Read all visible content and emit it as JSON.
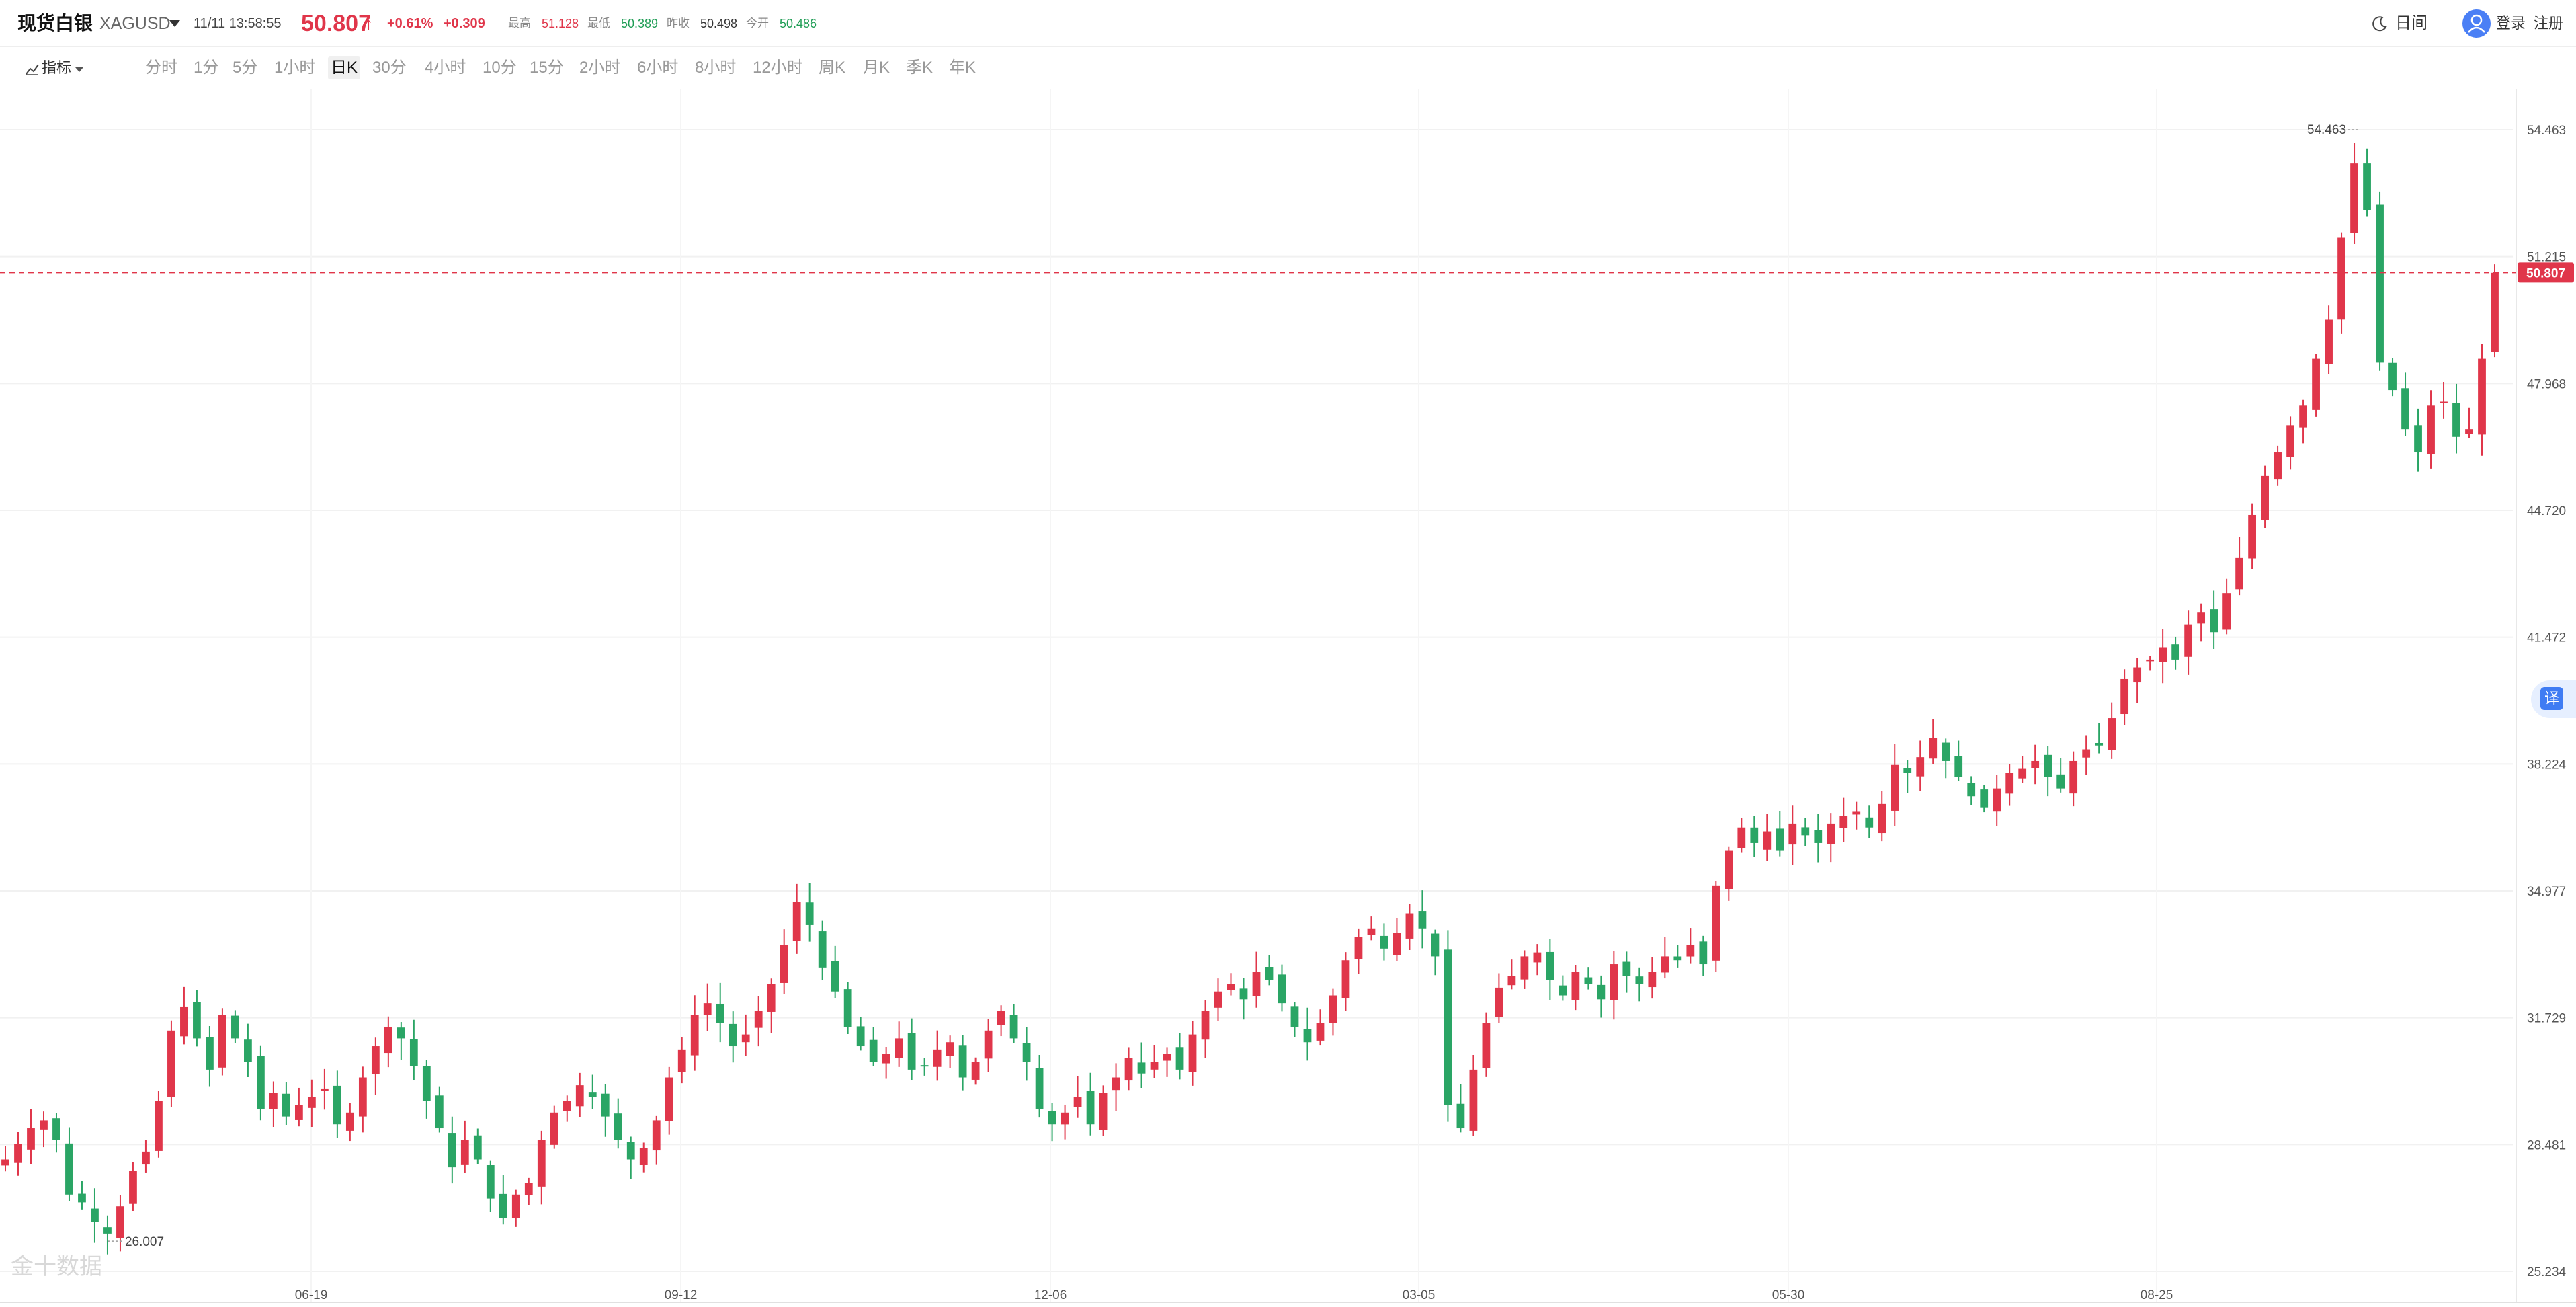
{
  "header": {
    "name": "现货白银",
    "code": "XAGUSD",
    "timestamp": "11/11 13:58:55",
    "price": "50.807",
    "change_pct": "+0.61%",
    "change": "+0.309",
    "stats": [
      {
        "label": "最高",
        "value": "51.128",
        "color": "#e0364a"
      },
      {
        "label": "最低",
        "value": "50.389",
        "color": "#1f9d55"
      },
      {
        "label": "昨收",
        "value": "50.498",
        "color": "#333333"
      },
      {
        "label": "今开",
        "value": "50.486",
        "color": "#1f9d55"
      }
    ],
    "calendar_label": "日间",
    "login_label": "登录",
    "register_label": "注册"
  },
  "toolbar": {
    "indicator_label": "指标",
    "timeframes": [
      "分时",
      "1分",
      "5分",
      "1小时",
      "日K",
      "30分",
      "4小时",
      "10分",
      "15分",
      "2小时",
      "6小时",
      "8小时",
      "12小时",
      "周K",
      "月K",
      "季K",
      "年K"
    ],
    "active_timeframe": "日K"
  },
  "colors": {
    "up": "#e0364a",
    "down": "#2aa565",
    "accent": "#4a7ff5"
  },
  "watermark": "金十数据",
  "translate_label": "译",
  "chart_data": {
    "type": "candlestick",
    "y_ticks": [
      "54.463",
      "51.215",
      "47.968",
      "44.720",
      "41.472",
      "38.224",
      "34.977",
      "31.729",
      "28.481",
      "25.234"
    ],
    "ylim": [
      25.234,
      54.463
    ],
    "x_tick_labels": [
      "06-19",
      "09-12",
      "12-06",
      "03-05",
      "05-30",
      "08-25"
    ],
    "current_price": 50.807,
    "current_price_label": "50.807",
    "max_label": "54.463",
    "min_label": "26.007",
    "grid": true,
    "closes": [
      28.1,
      28.5,
      28.9,
      29.1,
      28.6,
      27.2,
      27.0,
      26.5,
      26.2,
      26.9,
      27.8,
      28.3,
      29.6,
      31.4,
      32.0,
      31.2,
      30.4,
      31.8,
      31.2,
      30.6,
      29.4,
      29.8,
      29.2,
      29.5,
      29.7,
      29.9,
      29.0,
      29.3,
      30.2,
      31.0,
      31.5,
      31.2,
      30.5,
      29.6,
      28.9,
      27.9,
      28.6,
      28.1,
      27.1,
      26.6,
      27.2,
      27.5,
      28.6,
      29.3,
      29.6,
      30.0,
      29.7,
      29.2,
      28.6,
      28.1,
      28.4,
      29.1,
      30.2,
      30.9,
      31.8,
      32.1,
      31.6,
      31.0,
      31.3,
      31.9,
      32.6,
      33.6,
      34.7,
      34.1,
      33.0,
      32.4,
      31.5,
      31.0,
      30.6,
      30.8,
      31.2,
      30.4,
      30.5,
      30.9,
      31.1,
      30.2,
      30.6,
      31.4,
      31.9,
      31.2,
      30.6,
      29.4,
      29.0,
      29.3,
      29.7,
      29.0,
      29.8,
      30.2,
      30.7,
      30.3,
      30.6,
      30.8,
      30.4,
      31.3,
      31.9,
      32.4,
      32.6,
      32.2,
      32.9,
      32.7,
      32.1,
      31.5,
      31.1,
      31.6,
      32.3,
      33.2,
      33.8,
      34.0,
      33.5,
      33.9,
      34.4,
      34.0,
      33.3,
      29.5,
      28.9,
      30.4,
      31.6,
      32.5,
      32.8,
      33.3,
      33.4,
      32.7,
      32.3,
      32.9,
      32.6,
      32.2,
      33.1,
      32.8,
      32.6,
      32.9,
      33.3,
      33.2,
      33.6,
      33.1,
      35.1,
      36.0,
      36.6,
      36.2,
      36.5,
      36.0,
      36.7,
      36.4,
      36.2,
      36.7,
      36.9,
      37.0,
      36.6,
      37.2,
      38.2,
      38.0,
      38.4,
      38.9,
      38.3,
      37.9,
      37.4,
      37.1,
      37.6,
      38.0,
      38.1,
      38.3,
      37.9,
      37.6,
      38.3,
      38.6,
      38.7,
      39.4,
      40.4,
      40.7,
      40.9,
      41.2,
      40.9,
      41.8,
      42.1,
      41.6,
      42.6,
      43.5,
      44.6,
      45.6,
      46.2,
      46.9,
      47.4,
      48.6,
      49.6,
      51.7,
      53.6,
      52.4,
      48.5,
      47.8,
      46.8,
      46.2,
      47.4,
      47.5,
      46.6,
      46.8,
      48.6,
      50.8
    ]
  }
}
